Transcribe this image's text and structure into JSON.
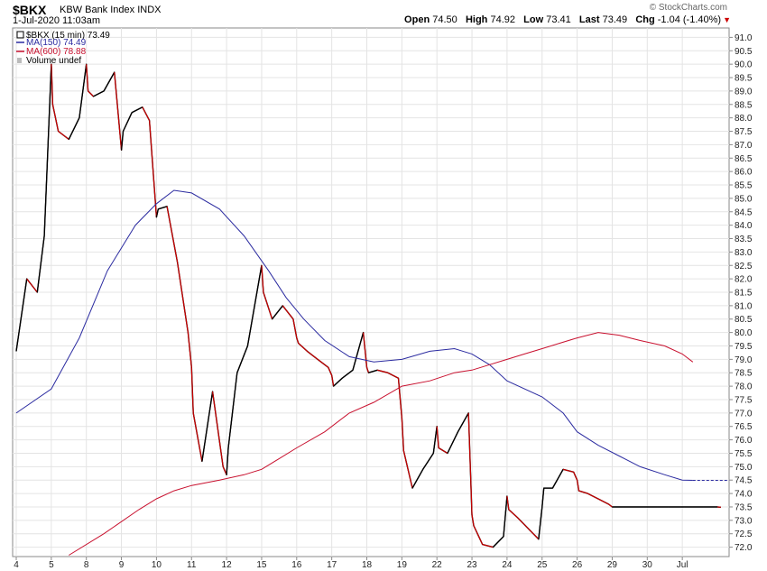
{
  "header": {
    "symbol": "$BKX",
    "index_name": "KBW Bank Index",
    "exchange": "INDX",
    "datetime": "1-Jul-2020 11:03am",
    "credit": "© StockCharts.com",
    "open_label": "Open",
    "open": "74.50",
    "high_label": "High",
    "high": "74.92",
    "low_label": "Low",
    "low": "73.41",
    "last_label": "Last",
    "last": "73.49",
    "chg_label": "Chg",
    "chg": "-1.04 (-1.40%)"
  },
  "legend": {
    "price": "$BKX (15 min) 73.49",
    "ma150": "MA(150) 74.49",
    "ma600": "MA(600) 78.88",
    "volume": "Volume undef"
  },
  "colors": {
    "up": "#000000",
    "down": "#cc0000",
    "ma150": "#2b2ba0",
    "ma600": "#c8102e",
    "grid": "#e4e4e4",
    "last_line": "#2b2ba0"
  },
  "chart_data": {
    "type": "line",
    "title": "$BKX KBW Bank Index INDX (15 min)",
    "xlabel": "",
    "ylabel": "",
    "ylim": [
      71.65,
      91.35
    ],
    "yticks": [
      72.0,
      72.5,
      73.0,
      73.5,
      74.0,
      74.5,
      75.0,
      75.5,
      76.0,
      76.5,
      77.0,
      77.5,
      78.0,
      78.5,
      79.0,
      79.5,
      80.0,
      80.5,
      81.0,
      81.5,
      82.0,
      82.5,
      83.0,
      83.5,
      84.0,
      84.5,
      85.0,
      85.5,
      86.0,
      86.5,
      87.0,
      87.5,
      88.0,
      88.5,
      89.0,
      89.5,
      90.0,
      90.5,
      91.0
    ],
    "xticks": [
      "4",
      "5",
      "8",
      "9",
      "10",
      "11",
      "12",
      "15",
      "16",
      "17",
      "18",
      "19",
      "22",
      "23",
      "24",
      "25",
      "26",
      "29",
      "30",
      "Jul"
    ],
    "last_value": 74.49,
    "series": [
      {
        "name": "$BKX (15 min)",
        "style": "price",
        "x": [
          0.0,
          0.3,
          0.6,
          0.8,
          1.0,
          1.04,
          1.2,
          1.5,
          1.8,
          2.0,
          2.05,
          2.2,
          2.5,
          2.8,
          3.0,
          3.05,
          3.3,
          3.6,
          3.8,
          4.0,
          4.05,
          4.3,
          4.6,
          4.9,
          5.0,
          5.05,
          5.3,
          5.6,
          5.9,
          6.0,
          6.05,
          6.3,
          6.6,
          7.0,
          7.05,
          7.3,
          7.6,
          7.9,
          8.0,
          8.05,
          8.3,
          8.6,
          8.9,
          9.0,
          9.05,
          9.3,
          9.6,
          9.9,
          10.0,
          10.05,
          10.3,
          10.6,
          10.9,
          11.0,
          11.05,
          11.3,
          11.6,
          11.9,
          12.0,
          12.05,
          12.3,
          12.6,
          12.9,
          13.0,
          13.05,
          13.3,
          13.6,
          13.9,
          14.0,
          14.05,
          14.3,
          14.6,
          14.9,
          15.0,
          15.05,
          15.3,
          15.6,
          15.9,
          16.0,
          16.05,
          16.3,
          16.6,
          16.9,
          17.0,
          17.05,
          17.3,
          17.6,
          17.9,
          18.0,
          18.05,
          18.3,
          18.6,
          18.9,
          19.0,
          19.05,
          19.3,
          19.6,
          19.9,
          20.0,
          20.1
        ],
        "y": [
          79.3,
          82.0,
          81.5,
          83.6,
          90.0,
          88.5,
          87.5,
          87.2,
          88.0,
          90.0,
          89.0,
          88.8,
          89.0,
          89.7,
          86.8,
          87.5,
          88.2,
          88.4,
          87.9,
          84.3,
          84.6,
          84.7,
          82.6,
          80.0,
          78.7,
          77.0,
          75.2,
          77.8,
          75.0,
          74.7,
          75.7,
          78.5,
          79.5,
          82.5,
          81.5,
          80.5,
          81.0,
          80.5,
          79.8,
          79.6,
          79.3,
          79.0,
          78.7,
          78.4,
          78.0,
          78.3,
          78.6,
          80.0,
          78.7,
          78.5,
          78.6,
          78.5,
          78.3,
          76.8,
          75.6,
          74.2,
          74.9,
          75.5,
          76.5,
          75.7,
          75.5,
          76.3,
          77.0,
          73.2,
          72.8,
          72.1,
          72.0,
          72.4,
          73.9,
          73.4,
          73.1,
          72.7,
          72.3,
          73.5,
          74.2,
          74.2,
          74.9,
          74.8,
          74.5,
          74.1,
          74.0,
          73.8,
          73.6,
          73.5,
          73.5,
          73.5,
          73.5,
          73.5,
          73.5,
          73.5,
          73.5,
          73.5,
          73.5,
          73.5,
          73.5,
          73.5,
          73.5,
          73.5,
          73.5,
          73.49
        ]
      },
      {
        "name": "MA(150)",
        "style": "ma150",
        "x": [
          0.0,
          1.0,
          1.8,
          2.6,
          3.4,
          4.0,
          4.5,
          5.0,
          5.8,
          6.5,
          7.2,
          7.7,
          8.2,
          8.8,
          9.5,
          10.2,
          11.0,
          11.8,
          12.5,
          13.0,
          13.5,
          14.0,
          15.0,
          15.6,
          16.0,
          16.6,
          17.2,
          17.8,
          18.5,
          19.0,
          19.3
        ],
        "y": [
          77.0,
          77.9,
          79.8,
          82.3,
          84.0,
          84.8,
          85.3,
          85.2,
          84.6,
          83.6,
          82.3,
          81.3,
          80.5,
          79.7,
          79.1,
          78.9,
          79.0,
          79.3,
          79.4,
          79.2,
          78.8,
          78.2,
          77.6,
          77.0,
          76.3,
          75.8,
          75.4,
          75.0,
          74.7,
          74.5,
          74.49
        ]
      },
      {
        "name": "MA(600)",
        "style": "ma600",
        "x": [
          1.5,
          2.5,
          3.5,
          4.0,
          4.5,
          5.0,
          5.8,
          6.5,
          7.0,
          7.5,
          8.0,
          8.8,
          9.5,
          10.2,
          11.0,
          11.8,
          12.5,
          13.0,
          13.5,
          14.0,
          14.5,
          15.0,
          15.5,
          16.0,
          16.6,
          17.2,
          17.8,
          18.5,
          19.0,
          19.3
        ],
        "y": [
          71.7,
          72.5,
          73.4,
          73.8,
          74.1,
          74.3,
          74.5,
          74.7,
          74.9,
          75.3,
          75.7,
          76.3,
          77.0,
          77.4,
          78.0,
          78.2,
          78.5,
          78.6,
          78.8,
          79.0,
          79.2,
          79.4,
          79.6,
          79.8,
          80.0,
          79.9,
          79.7,
          79.5,
          79.2,
          78.9
        ]
      }
    ]
  }
}
